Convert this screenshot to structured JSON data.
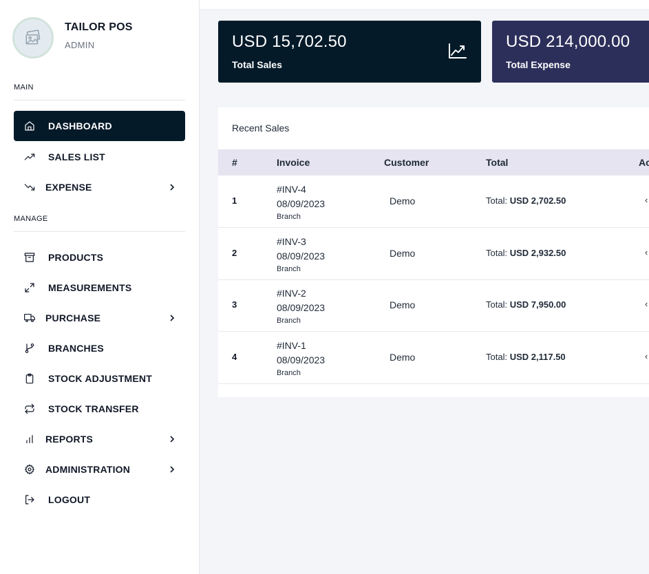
{
  "brand": {
    "title": "TAILOR POS",
    "subtitle": "ADMIN"
  },
  "sections": {
    "main": "MAIN",
    "manage": "MANAGE"
  },
  "nav": {
    "dashboard": "DASHBOARD",
    "sales_list": "SALES LIST",
    "expense": "EXPENSE",
    "products": "PRODUCTS",
    "measurements": "MEASUREMENTS",
    "purchase": "PURCHASE",
    "branches": "BRANCHES",
    "stock_adjustment": "STOCK ADJUSTMENT",
    "stock_transfer": "STOCK TRANSFER",
    "reports": "REPORTS",
    "administration": "ADMINISTRATION",
    "logout": "LOGOUT"
  },
  "cards": [
    {
      "amount": "USD 15,702.50",
      "label": "Total Sales",
      "color": "#041a29",
      "icon": "trend-chart-icon"
    },
    {
      "amount": "USD 214,000.00",
      "label": "Total Expense",
      "color": "#2d2f5b"
    }
  ],
  "recent_sales": {
    "title": "Recent Sales",
    "columns": [
      "#",
      "Invoice",
      "Customer",
      "Total",
      "Ac"
    ],
    "total_prefix": "Total:",
    "rows": [
      {
        "num": "1",
        "invoice": "#INV-4",
        "date": "08/09/2023",
        "branch": "Branch",
        "customer": "Demo",
        "total": "USD 2,702.50"
      },
      {
        "num": "2",
        "invoice": "#INV-3",
        "date": "08/09/2023",
        "branch": "Branch",
        "customer": "Demo",
        "total": "USD 2,932.50"
      },
      {
        "num": "3",
        "invoice": "#INV-2",
        "date": "08/09/2023",
        "branch": "Branch",
        "customer": "Demo",
        "total": "USD 7,950.00"
      },
      {
        "num": "4",
        "invoice": "#INV-1",
        "date": "08/09/2023",
        "branch": "Branch",
        "customer": "Demo",
        "total": "USD 2,117.50"
      }
    ]
  },
  "colors": {
    "sidebar_active": "#041a29",
    "table_header": "#e5e4f0",
    "background": "#f3f5f9"
  }
}
